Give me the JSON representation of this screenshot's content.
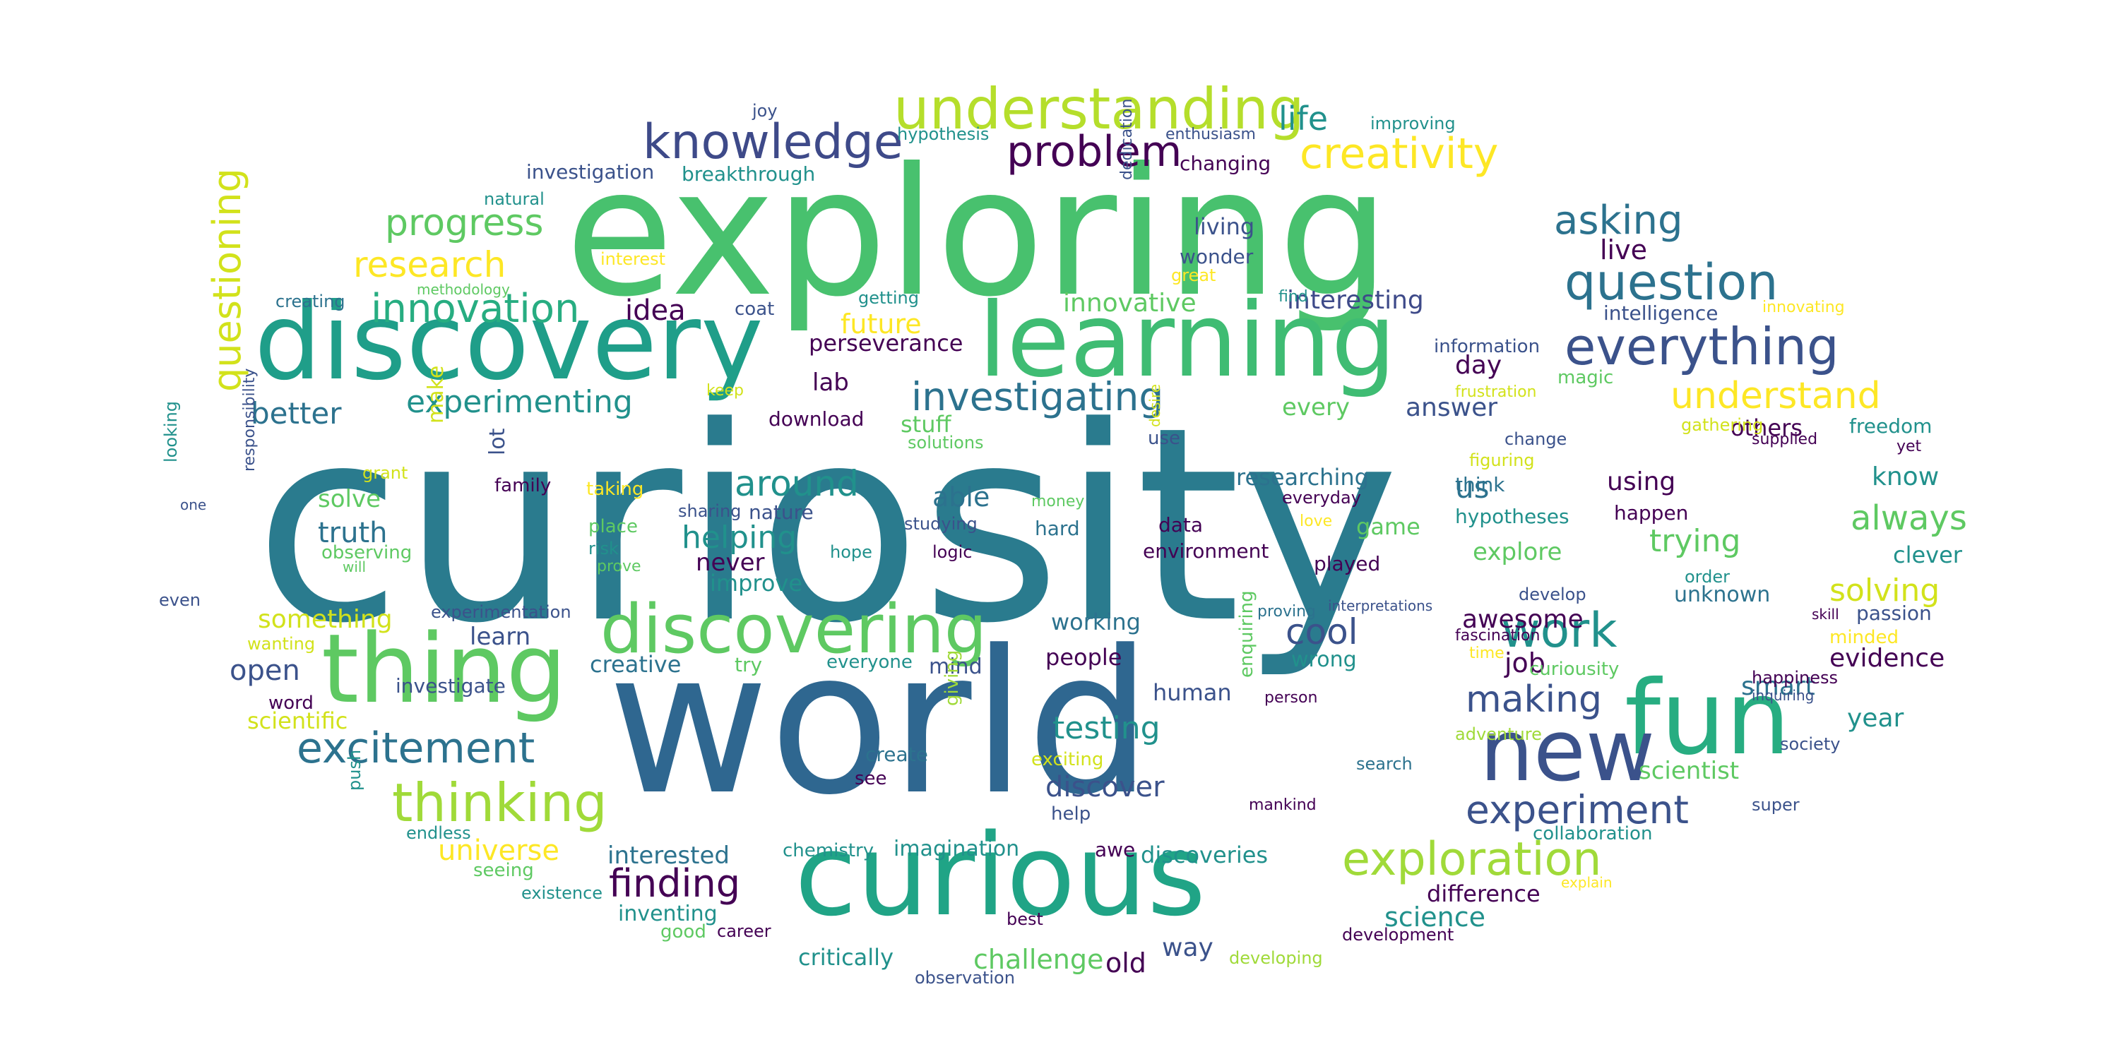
{
  "palette": {
    "deep_purple": "#440154",
    "indigo": "#3b528b",
    "blue": "#2c728e",
    "teal": "#21918c",
    "green_teal": "#28ae80",
    "green": "#5ec962",
    "lime": "#addc30",
    "yellow": "#fde725"
  },
  "words": [
    {
      "text": "curiosity",
      "color": "#2a7b8e"
    },
    {
      "text": "world",
      "color": "#2f6790"
    },
    {
      "text": "exploring",
      "color": "#48c16e"
    },
    {
      "text": "discovery",
      "color": "#1f9e89"
    },
    {
      "text": "learning",
      "color": "#3fbc73"
    },
    {
      "text": "curious",
      "color": "#20a486"
    },
    {
      "text": "thing",
      "color": "#5ec962"
    },
    {
      "text": "fun",
      "color": "#27ad81"
    },
    {
      "text": "new",
      "color": "#3b528b"
    },
    {
      "text": "discovering",
      "color": "#5ec962"
    },
    {
      "text": "understanding",
      "color": "#b5de2b"
    },
    {
      "text": "knowledge",
      "color": "#3e4a89"
    },
    {
      "text": "question",
      "color": "#2c728e"
    },
    {
      "text": "everything",
      "color": "#3b528b"
    },
    {
      "text": "investigating",
      "color": "#2c728e"
    },
    {
      "text": "problem",
      "color": "#440154"
    },
    {
      "text": "creativity",
      "color": "#fde725"
    },
    {
      "text": "thinking",
      "color": "#a0da39"
    },
    {
      "text": "excitement",
      "color": "#2c728e"
    },
    {
      "text": "exploration",
      "color": "#a0da39"
    },
    {
      "text": "innovation",
      "color": "#27ad81"
    },
    {
      "text": "progress",
      "color": "#5ec962"
    },
    {
      "text": "research",
      "color": "#fde725"
    },
    {
      "text": "understand",
      "color": "#fde725"
    },
    {
      "text": "experimenting",
      "color": "#21918c"
    },
    {
      "text": "asking",
      "color": "#2c728e"
    },
    {
      "text": "work",
      "color": "#21918c"
    },
    {
      "text": "experiment",
      "color": "#3b528b"
    },
    {
      "text": "making",
      "color": "#3b528b"
    },
    {
      "text": "finding",
      "color": "#440154"
    },
    {
      "text": "questioning",
      "color": "#d2e21b"
    },
    {
      "text": "around",
      "color": "#21918c"
    },
    {
      "text": "life",
      "color": "#21918c"
    },
    {
      "text": "live",
      "color": "#440154"
    },
    {
      "text": "idea",
      "color": "#440154"
    },
    {
      "text": "future",
      "color": "#fde725"
    },
    {
      "text": "innovative",
      "color": "#5ec962"
    },
    {
      "text": "interesting",
      "color": "#3e4a89"
    },
    {
      "text": "better",
      "color": "#2c728e"
    },
    {
      "text": "cool",
      "color": "#3b528b"
    },
    {
      "text": "helping",
      "color": "#21918c"
    },
    {
      "text": "truth",
      "color": "#2c728e"
    },
    {
      "text": "solving",
      "color": "#d2e21b"
    },
    {
      "text": "always",
      "color": "#5ec962"
    },
    {
      "text": "trying",
      "color": "#5ec962"
    },
    {
      "text": "testing",
      "color": "#21918c"
    },
    {
      "text": "discover",
      "color": "#3b528b"
    },
    {
      "text": "universe",
      "color": "#fde725"
    },
    {
      "text": "interested",
      "color": "#2c728e"
    },
    {
      "text": "open",
      "color": "#3b528b"
    },
    {
      "text": "able",
      "color": "#2c728e"
    },
    {
      "text": "us",
      "color": "#2c728e"
    },
    {
      "text": "answer",
      "color": "#3b528b"
    },
    {
      "text": "day",
      "color": "#440154"
    },
    {
      "text": "every",
      "color": "#5ec962"
    },
    {
      "text": "lab",
      "color": "#440154"
    },
    {
      "text": "perseverance",
      "color": "#440154"
    },
    {
      "text": "researching",
      "color": "#2c728e"
    },
    {
      "text": "using",
      "color": "#440154"
    },
    {
      "text": "know",
      "color": "#21918c"
    },
    {
      "text": "learn",
      "color": "#3b528b"
    },
    {
      "text": "never",
      "color": "#440154"
    },
    {
      "text": "improve",
      "color": "#21918c"
    },
    {
      "text": "something",
      "color": "#d2e21b"
    },
    {
      "text": "solve",
      "color": "#5ec962"
    },
    {
      "text": "creative",
      "color": "#2c728e"
    },
    {
      "text": "awesome",
      "color": "#440154"
    },
    {
      "text": "job",
      "color": "#440154"
    },
    {
      "text": "evidence",
      "color": "#440154"
    },
    {
      "text": "smart",
      "color": "#2c728e"
    },
    {
      "text": "year",
      "color": "#21918c"
    },
    {
      "text": "scientist",
      "color": "#5ec962"
    },
    {
      "text": "science",
      "color": "#21918c"
    },
    {
      "text": "difference",
      "color": "#440154"
    },
    {
      "text": "challenge",
      "color": "#5ec962"
    },
    {
      "text": "old",
      "color": "#440154"
    },
    {
      "text": "way",
      "color": "#3b528b"
    },
    {
      "text": "critically",
      "color": "#21918c"
    },
    {
      "text": "imagination",
      "color": "#21918c"
    },
    {
      "text": "discoveries",
      "color": "#21918c"
    },
    {
      "text": "working",
      "color": "#2c728e"
    },
    {
      "text": "people",
      "color": "#440154"
    },
    {
      "text": "human",
      "color": "#3b528b"
    },
    {
      "text": "mind",
      "color": "#3b528b"
    },
    {
      "text": "wrong",
      "color": "#21918c"
    },
    {
      "text": "game",
      "color": "#5ec962"
    },
    {
      "text": "explore",
      "color": "#5ec962"
    },
    {
      "text": "played",
      "color": "#440154"
    },
    {
      "text": "environment",
      "color": "#440154"
    },
    {
      "text": "data",
      "color": "#440154"
    },
    {
      "text": "hard",
      "color": "#2c728e"
    },
    {
      "text": "others",
      "color": "#440154"
    },
    {
      "text": "freedom",
      "color": "#21918c"
    },
    {
      "text": "clever",
      "color": "#21918c"
    },
    {
      "text": "unknown",
      "color": "#2c728e"
    },
    {
      "text": "hypotheses",
      "color": "#21918c"
    },
    {
      "text": "happen",
      "color": "#440154"
    },
    {
      "text": "think",
      "color": "#2c728e"
    },
    {
      "text": "change",
      "color": "#3b528b"
    },
    {
      "text": "figuring",
      "color": "#d2e21b"
    },
    {
      "text": "frustration",
      "color": "#d2e21b"
    },
    {
      "text": "information",
      "color": "#3b528b"
    },
    {
      "text": "intelligence",
      "color": "#3b528b"
    },
    {
      "text": "magic",
      "color": "#5ec962"
    },
    {
      "text": "gathering",
      "color": "#d2e21b"
    },
    {
      "text": "supplied",
      "color": "#440154"
    },
    {
      "text": "yet",
      "color": "#440154"
    },
    {
      "text": "passion",
      "color": "#3b528b"
    },
    {
      "text": "skill",
      "color": "#440154"
    },
    {
      "text": "minded",
      "color": "#fde725"
    },
    {
      "text": "happiness",
      "color": "#440154"
    },
    {
      "text": "inquiring",
      "color": "#3b528b"
    },
    {
      "text": "society",
      "color": "#3b528b"
    },
    {
      "text": "curiousity",
      "color": "#5ec962"
    },
    {
      "text": "adventure",
      "color": "#a0da39"
    },
    {
      "text": "time",
      "color": "#fde725"
    },
    {
      "text": "fascination",
      "color": "#440154"
    },
    {
      "text": "develop",
      "color": "#3b528b"
    },
    {
      "text": "interpretations",
      "color": "#3b528b"
    },
    {
      "text": "proving",
      "color": "#2c728e"
    },
    {
      "text": "order",
      "color": "#21918c"
    },
    {
      "text": "person",
      "color": "#440154"
    },
    {
      "text": "enquiring",
      "color": "#5ec962"
    },
    {
      "text": "search",
      "color": "#2c728e"
    },
    {
      "text": "mankind",
      "color": "#440154"
    },
    {
      "text": "super",
      "color": "#3b528b"
    },
    {
      "text": "collaboration",
      "color": "#21918c"
    },
    {
      "text": "explain",
      "color": "#fde725"
    },
    {
      "text": "development",
      "color": "#440154"
    },
    {
      "text": "developing",
      "color": "#a0da39"
    },
    {
      "text": "best",
      "color": "#440154"
    },
    {
      "text": "observation",
      "color": "#3b528b"
    },
    {
      "text": "career",
      "color": "#440154"
    },
    {
      "text": "good",
      "color": "#5ec962"
    },
    {
      "text": "inventing",
      "color": "#21918c"
    },
    {
      "text": "chemistry",
      "color": "#21918c"
    },
    {
      "text": "awe",
      "color": "#440154"
    },
    {
      "text": "create",
      "color": "#2c728e"
    },
    {
      "text": "see",
      "color": "#440154"
    },
    {
      "text": "giving",
      "color": "#a0da39"
    },
    {
      "text": "exciting",
      "color": "#d2e21b"
    },
    {
      "text": "help",
      "color": "#3b528b"
    },
    {
      "text": "everyone",
      "color": "#21918c"
    },
    {
      "text": "try",
      "color": "#5ec962"
    },
    {
      "text": "hope",
      "color": "#21918c"
    },
    {
      "text": "logic",
      "color": "#440154"
    },
    {
      "text": "studying",
      "color": "#3b528b"
    },
    {
      "text": "money",
      "color": "#5ec962"
    },
    {
      "text": "love",
      "color": "#fde725"
    },
    {
      "text": "everyday",
      "color": "#440154"
    },
    {
      "text": "use",
      "color": "#3b528b"
    },
    {
      "text": "desire",
      "color": "#d2e21b"
    },
    {
      "text": "solutions",
      "color": "#5ec962"
    },
    {
      "text": "stuff",
      "color": "#5ec962"
    },
    {
      "text": "download",
      "color": "#440154"
    },
    {
      "text": "sharing",
      "color": "#3b528b"
    },
    {
      "text": "nature",
      "color": "#3b528b"
    },
    {
      "text": "place",
      "color": "#5ec962"
    },
    {
      "text": "risk",
      "color": "#21918c"
    },
    {
      "text": "prove",
      "color": "#5ec962"
    },
    {
      "text": "experimentation",
      "color": "#3b528b"
    },
    {
      "text": "investigate",
      "color": "#3b528b"
    },
    {
      "text": "scientific",
      "color": "#d2e21b"
    },
    {
      "text": "word",
      "color": "#440154"
    },
    {
      "text": "wanting",
      "color": "#d2e21b"
    },
    {
      "text": "observing",
      "color": "#5ec962"
    },
    {
      "text": "will",
      "color": "#5ec962"
    },
    {
      "text": "make",
      "color": "#d2e21b"
    },
    {
      "text": "lot",
      "color": "#3b528b"
    },
    {
      "text": "family",
      "color": "#440154"
    },
    {
      "text": "taking",
      "color": "#fde725"
    },
    {
      "text": "grant",
      "color": "#d2e21b"
    },
    {
      "text": "responsibility",
      "color": "#3b528b"
    },
    {
      "text": "one",
      "color": "#3b528b"
    },
    {
      "text": "looking",
      "color": "#21918c"
    },
    {
      "text": "even",
      "color": "#3b528b"
    },
    {
      "text": "push",
      "color": "#21918c"
    },
    {
      "text": "endless",
      "color": "#21918c"
    },
    {
      "text": "seeing",
      "color": "#5ec962"
    },
    {
      "text": "existence",
      "color": "#21918c"
    },
    {
      "text": "keep",
      "color": "#d2e21b"
    },
    {
      "text": "coat",
      "color": "#3b528b"
    },
    {
      "text": "getting",
      "color": "#21918c"
    },
    {
      "text": "creating",
      "color": "#2c728e"
    },
    {
      "text": "methodology",
      "color": "#5ec962"
    },
    {
      "text": "interest",
      "color": "#fde725"
    },
    {
      "text": "natural",
      "color": "#21918c"
    },
    {
      "text": "investigation",
      "color": "#3b528b"
    },
    {
      "text": "breakthrough",
      "color": "#21918c"
    },
    {
      "text": "hypothesis",
      "color": "#21918c"
    },
    {
      "text": "joy",
      "color": "#3b528b"
    },
    {
      "text": "enthusiasm",
      "color": "#3b528b"
    },
    {
      "text": "changing",
      "color": "#440154"
    },
    {
      "text": "improving",
      "color": "#21918c"
    },
    {
      "text": "dedication",
      "color": "#3b528b"
    },
    {
      "text": "living",
      "color": "#3b528b"
    },
    {
      "text": "wonder",
      "color": "#3b528b"
    },
    {
      "text": "great",
      "color": "#fde725"
    },
    {
      "text": "find",
      "color": "#21918c"
    },
    {
      "text": "innovating",
      "color": "#fde725"
    }
  ]
}
